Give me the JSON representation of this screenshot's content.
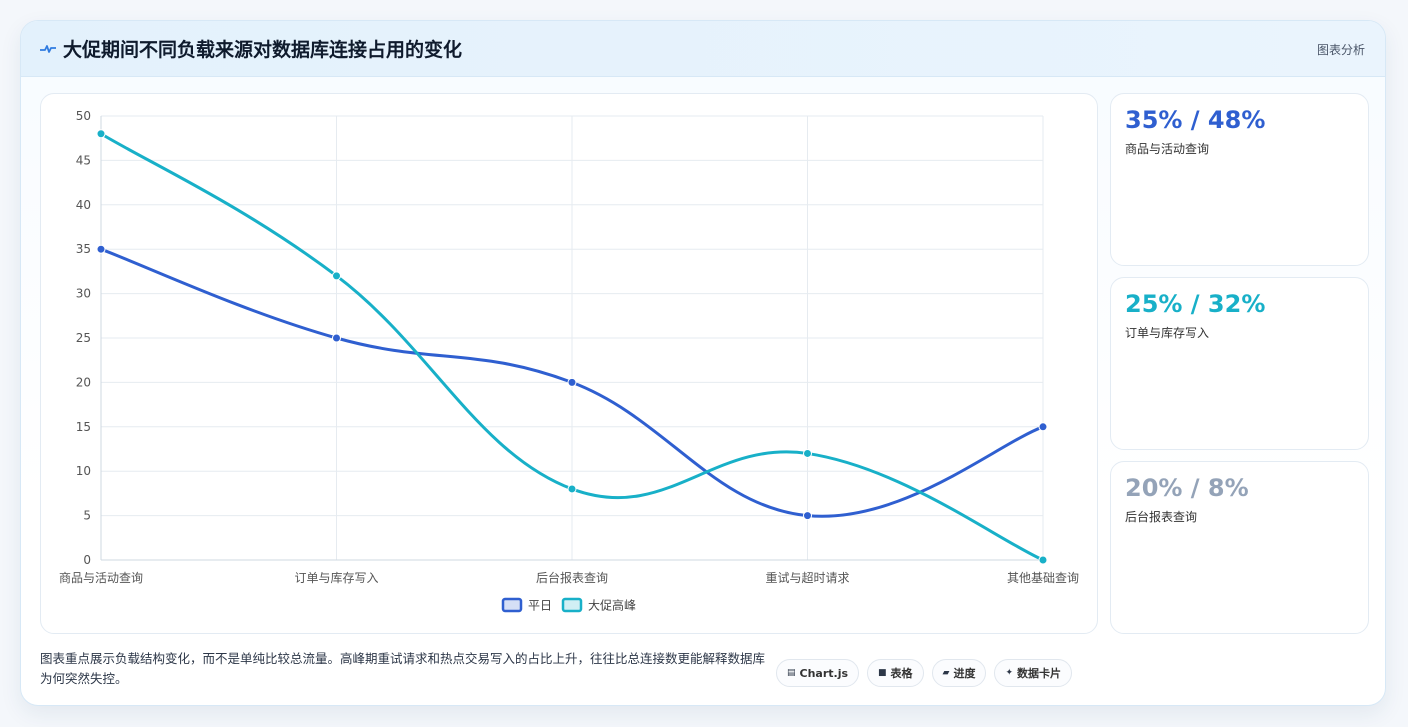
{
  "header": {
    "title": "大促期间不同负载来源对数据库连接占用的变化",
    "tag": "图表分析",
    "icon": "pulse-icon"
  },
  "chart_data": {
    "type": "line",
    "categories": [
      "商品与活动查询",
      "订单与库存写入",
      "后台报表查询",
      "重试与超时请求",
      "其他基础查询"
    ],
    "series": [
      {
        "name": "平日",
        "values": [
          35,
          25,
          20,
          5,
          15
        ],
        "color": "#2f5fd0"
      },
      {
        "name": "大促高峰",
        "values": [
          48,
          32,
          8,
          12,
          0
        ],
        "color": "#18b0c8"
      }
    ],
    "ylim": [
      0,
      50
    ],
    "yticks": [
      0,
      5,
      10,
      15,
      20,
      25,
      30,
      35,
      40,
      45,
      50
    ],
    "grid": true,
    "legend": "bottom"
  },
  "stats": [
    {
      "value": "35% / 48%",
      "label": "商品与活动查询",
      "color": "#2f5fd0"
    },
    {
      "value": "25% / 32%",
      "label": "订单与库存写入",
      "color": "#18b0c8"
    },
    {
      "value": "20% / 8%",
      "label": "后台报表查询",
      "color": "#94a3b8"
    }
  ],
  "footer": {
    "text": "图表重点展示负载结构变化，而不是单纯比较总流量。高峰期重试请求和热点交易写入的占比上升，往往比总连接数更能解释数据库为何突然失控。"
  },
  "chips": [
    {
      "icon": "▤",
      "label": "Chart.js"
    },
    {
      "icon": "■",
      "label": "表格"
    },
    {
      "icon": "▰",
      "label": "进度"
    },
    {
      "icon": "✦",
      "label": "数据卡片"
    }
  ]
}
